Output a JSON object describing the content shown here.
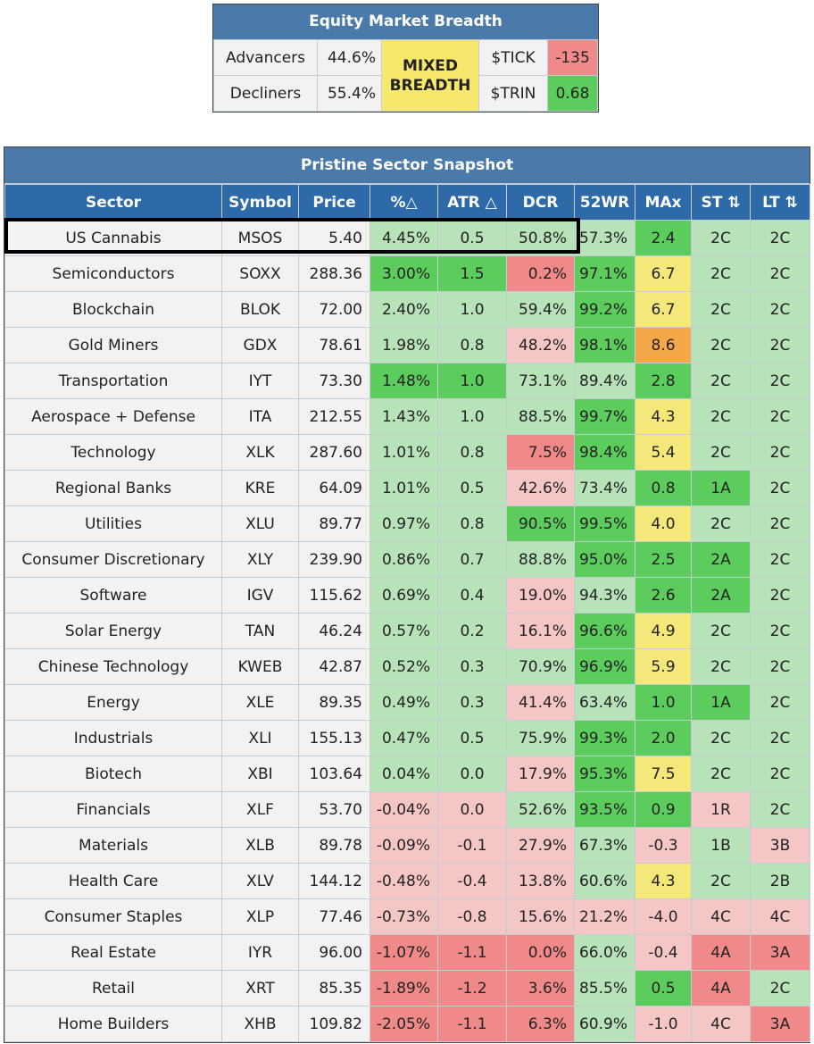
{
  "breadth": {
    "title": "Equity Market Breadth",
    "advancers_label": "Advancers",
    "advancers_value": "44.6%",
    "decliners_label": "Decliners",
    "decliners_value": "55.4%",
    "status_line1": "MIXED",
    "status_line2": "BREADTH",
    "tick_label": "$TICK",
    "tick_value": "-135",
    "trin_label": "$TRIN",
    "trin_value": "0.68",
    "colors": {
      "tick": "#f08a8a",
      "trin": "#5ccc5c",
      "status": "#f5e86d"
    }
  },
  "chart_data": {
    "type": "table",
    "title": "Pristine Sector Snapshot",
    "columns": [
      "Sector",
      "Symbol",
      "Price",
      "%△",
      "ATR △",
      "DCR",
      "52WR",
      "MAx",
      "ST ⇅",
      "LT ⇅"
    ],
    "highlighted_row": "US Cannabis",
    "color_legend": {
      "dg": "#5ccc5c",
      "lg": "#b8e2b8",
      "lr": "#f5c6c6",
      "dr": "#f08a8a",
      "y": "#f5e87a",
      "o": "#f5a84a"
    },
    "rows": [
      {
        "sector": "US Cannabis",
        "symbol": "MSOS",
        "price": "5.40",
        "pct": "4.45%",
        "atr": "0.5",
        "dcr": "50.8%",
        "wr52": "57.3%",
        "max": "2.4",
        "st": "2C",
        "lt": "2C",
        "colors": {
          "pct": "lg",
          "atr": "lg",
          "dcr": "lg",
          "wr52": "lg",
          "max": "dg",
          "st": "lg",
          "lt": "lg"
        }
      },
      {
        "sector": "Semiconductors",
        "symbol": "SOXX",
        "price": "288.36",
        "pct": "3.00%",
        "atr": "1.5",
        "dcr": "0.2%",
        "wr52": "97.1%",
        "max": "6.7",
        "st": "2C",
        "lt": "2C",
        "colors": {
          "pct": "dg",
          "atr": "dg",
          "dcr": "dr",
          "wr52": "dg",
          "max": "y",
          "st": "lg",
          "lt": "lg"
        }
      },
      {
        "sector": "Blockchain",
        "symbol": "BLOK",
        "price": "72.00",
        "pct": "2.40%",
        "atr": "1.0",
        "dcr": "59.4%",
        "wr52": "99.2%",
        "max": "6.7",
        "st": "2C",
        "lt": "2C",
        "colors": {
          "pct": "lg",
          "atr": "lg",
          "dcr": "lg",
          "wr52": "dg",
          "max": "y",
          "st": "lg",
          "lt": "lg"
        }
      },
      {
        "sector": "Gold Miners",
        "symbol": "GDX",
        "price": "78.61",
        "pct": "1.98%",
        "atr": "0.8",
        "dcr": "48.2%",
        "wr52": "98.1%",
        "max": "8.6",
        "st": "2C",
        "lt": "2C",
        "colors": {
          "pct": "lg",
          "atr": "lg",
          "dcr": "lr",
          "wr52": "dg",
          "max": "o",
          "st": "lg",
          "lt": "lg"
        }
      },
      {
        "sector": "Transportation",
        "symbol": "IYT",
        "price": "73.30",
        "pct": "1.48%",
        "atr": "1.0",
        "dcr": "73.1%",
        "wr52": "89.4%",
        "max": "2.8",
        "st": "2C",
        "lt": "2C",
        "colors": {
          "pct": "dg",
          "atr": "dg",
          "dcr": "lg",
          "wr52": "lg",
          "max": "dg",
          "st": "lg",
          "lt": "lg"
        }
      },
      {
        "sector": "Aerospace + Defense",
        "symbol": "ITA",
        "price": "212.55",
        "pct": "1.43%",
        "atr": "1.0",
        "dcr": "88.5%",
        "wr52": "99.7%",
        "max": "4.3",
        "st": "2C",
        "lt": "2C",
        "colors": {
          "pct": "lg",
          "atr": "lg",
          "dcr": "lg",
          "wr52": "dg",
          "max": "y",
          "st": "lg",
          "lt": "lg"
        }
      },
      {
        "sector": "Technology",
        "symbol": "XLK",
        "price": "287.60",
        "pct": "1.01%",
        "atr": "0.8",
        "dcr": "7.5%",
        "wr52": "98.4%",
        "max": "5.4",
        "st": "2C",
        "lt": "2C",
        "colors": {
          "pct": "lg",
          "atr": "lg",
          "dcr": "dr",
          "wr52": "dg",
          "max": "y",
          "st": "lg",
          "lt": "lg"
        }
      },
      {
        "sector": "Regional Banks",
        "symbol": "KRE",
        "price": "64.09",
        "pct": "1.01%",
        "atr": "0.5",
        "dcr": "42.6%",
        "wr52": "73.4%",
        "max": "0.8",
        "st": "1A",
        "lt": "2C",
        "colors": {
          "pct": "lg",
          "atr": "lg",
          "dcr": "lr",
          "wr52": "lg",
          "max": "dg",
          "st": "dg",
          "lt": "lg"
        }
      },
      {
        "sector": "Utilities",
        "symbol": "XLU",
        "price": "89.77",
        "pct": "0.97%",
        "atr": "0.8",
        "dcr": "90.5%",
        "wr52": "99.5%",
        "max": "4.0",
        "st": "2C",
        "lt": "2C",
        "colors": {
          "pct": "lg",
          "atr": "lg",
          "dcr": "dg",
          "wr52": "dg",
          "max": "y",
          "st": "lg",
          "lt": "lg"
        }
      },
      {
        "sector": "Consumer Discretionary",
        "symbol": "XLY",
        "price": "239.90",
        "pct": "0.86%",
        "atr": "0.7",
        "dcr": "88.8%",
        "wr52": "95.0%",
        "max": "2.5",
        "st": "2A",
        "lt": "2C",
        "colors": {
          "pct": "lg",
          "atr": "lg",
          "dcr": "lg",
          "wr52": "dg",
          "max": "dg",
          "st": "dg",
          "lt": "lg"
        }
      },
      {
        "sector": "Software",
        "symbol": "IGV",
        "price": "115.62",
        "pct": "0.69%",
        "atr": "0.4",
        "dcr": "19.0%",
        "wr52": "94.3%",
        "max": "2.6",
        "st": "2A",
        "lt": "2C",
        "colors": {
          "pct": "lg",
          "atr": "lg",
          "dcr": "lr",
          "wr52": "lg",
          "max": "dg",
          "st": "dg",
          "lt": "lg"
        }
      },
      {
        "sector": "Solar Energy",
        "symbol": "TAN",
        "price": "46.24",
        "pct": "0.57%",
        "atr": "0.2",
        "dcr": "16.1%",
        "wr52": "96.6%",
        "max": "4.9",
        "st": "2C",
        "lt": "2C",
        "colors": {
          "pct": "lg",
          "atr": "lg",
          "dcr": "lr",
          "wr52": "dg",
          "max": "y",
          "st": "lg",
          "lt": "lg"
        }
      },
      {
        "sector": "Chinese Technology",
        "symbol": "KWEB",
        "price": "42.87",
        "pct": "0.52%",
        "atr": "0.3",
        "dcr": "70.9%",
        "wr52": "96.9%",
        "max": "5.9",
        "st": "2C",
        "lt": "2C",
        "colors": {
          "pct": "lg",
          "atr": "lg",
          "dcr": "lg",
          "wr52": "dg",
          "max": "y",
          "st": "lg",
          "lt": "lg"
        }
      },
      {
        "sector": "Energy",
        "symbol": "XLE",
        "price": "89.35",
        "pct": "0.49%",
        "atr": "0.3",
        "dcr": "41.4%",
        "wr52": "63.4%",
        "max": "1.0",
        "st": "1A",
        "lt": "2C",
        "colors": {
          "pct": "lg",
          "atr": "lg",
          "dcr": "lr",
          "wr52": "lg",
          "max": "dg",
          "st": "dg",
          "lt": "lg"
        }
      },
      {
        "sector": "Industrials",
        "symbol": "XLI",
        "price": "155.13",
        "pct": "0.47%",
        "atr": "0.5",
        "dcr": "75.9%",
        "wr52": "99.3%",
        "max": "2.0",
        "st": "2C",
        "lt": "2C",
        "colors": {
          "pct": "lg",
          "atr": "lg",
          "dcr": "lg",
          "wr52": "dg",
          "max": "dg",
          "st": "lg",
          "lt": "lg"
        }
      },
      {
        "sector": "Biotech",
        "symbol": "XBI",
        "price": "103.64",
        "pct": "0.04%",
        "atr": "0.0",
        "dcr": "17.9%",
        "wr52": "95.3%",
        "max": "7.5",
        "st": "2C",
        "lt": "2C",
        "colors": {
          "pct": "lg",
          "atr": "lg",
          "dcr": "lr",
          "wr52": "dg",
          "max": "y",
          "st": "lg",
          "lt": "lg"
        }
      },
      {
        "sector": "Financials",
        "symbol": "XLF",
        "price": "53.70",
        "pct": "-0.04%",
        "atr": "0.0",
        "dcr": "52.6%",
        "wr52": "93.5%",
        "max": "0.9",
        "st": "1R",
        "lt": "2C",
        "colors": {
          "pct": "lr",
          "atr": "lr",
          "dcr": "lg",
          "wr52": "dg",
          "max": "dg",
          "st": "lr",
          "lt": "lg"
        }
      },
      {
        "sector": "Materials",
        "symbol": "XLB",
        "price": "89.78",
        "pct": "-0.09%",
        "atr": "-0.1",
        "dcr": "27.9%",
        "wr52": "67.3%",
        "max": "-0.3",
        "st": "1B",
        "lt": "3B",
        "colors": {
          "pct": "lr",
          "atr": "lr",
          "dcr": "lr",
          "wr52": "lg",
          "max": "lr",
          "st": "lg",
          "lt": "lr"
        }
      },
      {
        "sector": "Health Care",
        "symbol": "XLV",
        "price": "144.12",
        "pct": "-0.48%",
        "atr": "-0.4",
        "dcr": "13.8%",
        "wr52": "60.6%",
        "max": "4.3",
        "st": "2C",
        "lt": "2B",
        "colors": {
          "pct": "lr",
          "atr": "lr",
          "dcr": "lr",
          "wr52": "lg",
          "max": "y",
          "st": "lg",
          "lt": "lg"
        }
      },
      {
        "sector": "Consumer Staples",
        "symbol": "XLP",
        "price": "77.46",
        "pct": "-0.73%",
        "atr": "-0.8",
        "dcr": "15.6%",
        "wr52": "21.2%",
        "max": "-4.0",
        "st": "4C",
        "lt": "4C",
        "colors": {
          "pct": "lr",
          "atr": "lr",
          "dcr": "lr",
          "wr52": "lr",
          "max": "lr",
          "st": "lr",
          "lt": "lr"
        }
      },
      {
        "sector": "Real Estate",
        "symbol": "IYR",
        "price": "96.00",
        "pct": "-1.07%",
        "atr": "-1.1",
        "dcr": "0.0%",
        "wr52": "66.0%",
        "max": "-0.4",
        "st": "4A",
        "lt": "3A",
        "colors": {
          "pct": "dr",
          "atr": "dr",
          "dcr": "dr",
          "wr52": "lg",
          "max": "lr",
          "st": "dr",
          "lt": "dr"
        }
      },
      {
        "sector": "Retail",
        "symbol": "XRT",
        "price": "85.35",
        "pct": "-1.89%",
        "atr": "-1.2",
        "dcr": "3.6%",
        "wr52": "85.5%",
        "max": "0.5",
        "st": "4A",
        "lt": "2C",
        "colors": {
          "pct": "dr",
          "atr": "dr",
          "dcr": "dr",
          "wr52": "lg",
          "max": "dg",
          "st": "dr",
          "lt": "lg"
        }
      },
      {
        "sector": "Home Builders",
        "symbol": "XHB",
        "price": "109.82",
        "pct": "-2.05%",
        "atr": "-1.1",
        "dcr": "6.3%",
        "wr52": "60.9%",
        "max": "-1.0",
        "st": "4C",
        "lt": "3A",
        "colors": {
          "pct": "dr",
          "atr": "dr",
          "dcr": "dr",
          "wr52": "lg",
          "max": "lr",
          "st": "lr",
          "lt": "dr"
        }
      }
    ]
  }
}
